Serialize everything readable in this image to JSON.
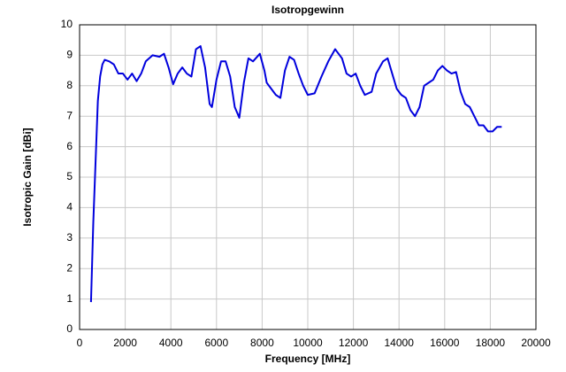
{
  "chart_data": {
    "type": "line",
    "title": "Isotropgewinn",
    "x_label": "Frequency [MHz]",
    "y_label": "Isotropic Gain [dBi]",
    "x": [
      500,
      600,
      700,
      800,
      900,
      1000,
      1100,
      1300,
      1500,
      1700,
      1900,
      2100,
      2300,
      2500,
      2700,
      2900,
      3200,
      3500,
      3700,
      3900,
      4100,
      4300,
      4500,
      4700,
      4900,
      5100,
      5300,
      5500,
      5700,
      5800,
      6000,
      6200,
      6400,
      6600,
      6800,
      7000,
      7200,
      7400,
      7600,
      7900,
      8100,
      8200,
      8400,
      8600,
      8800,
      9000,
      9200,
      9400,
      9600,
      9800,
      10000,
      10300,
      10600,
      10900,
      11200,
      11500,
      11700,
      11900,
      12100,
      12300,
      12500,
      12800,
      13000,
      13300,
      13500,
      13700,
      13900,
      14100,
      14300,
      14500,
      14700,
      14900,
      15100,
      15300,
      15500,
      15700,
      15900,
      16100,
      16300,
      16500,
      16700,
      16900,
      17100,
      17300,
      17500,
      17700,
      17900,
      18100,
      18300,
      18500
    ],
    "series": [
      {
        "name": "Isotropic Gain",
        "color": "#0000dd",
        "values": [
          0.9,
          3.5,
          5.5,
          7.5,
          8.3,
          8.7,
          8.85,
          8.8,
          8.7,
          8.4,
          8.4,
          8.2,
          8.4,
          8.15,
          8.4,
          8.8,
          9.0,
          8.95,
          9.05,
          8.6,
          8.05,
          8.4,
          8.6,
          8.4,
          8.3,
          9.2,
          9.3,
          8.6,
          7.4,
          7.3,
          8.2,
          8.8,
          8.8,
          8.3,
          7.3,
          6.95,
          8.1,
          8.9,
          8.8,
          9.05,
          8.5,
          8.1,
          7.9,
          7.7,
          7.6,
          8.5,
          8.95,
          8.85,
          8.4,
          8.0,
          7.7,
          7.75,
          8.3,
          8.8,
          9.2,
          8.9,
          8.4,
          8.3,
          8.4,
          8.0,
          7.7,
          7.8,
          8.4,
          8.8,
          8.9,
          8.4,
          7.9,
          7.7,
          7.6,
          7.2,
          7.0,
          7.3,
          8.0,
          8.1,
          8.2,
          8.5,
          8.65,
          8.5,
          8.4,
          8.45,
          7.8,
          7.4,
          7.3,
          7.0,
          6.7,
          6.7,
          6.5,
          6.5,
          6.65,
          6.65
        ]
      }
    ],
    "xlim": [
      0,
      20000
    ],
    "xticks": [
      0,
      2000,
      4000,
      6000,
      8000,
      10000,
      12000,
      14000,
      16000,
      18000,
      20000
    ],
    "ylim": [
      0,
      10
    ],
    "yticks": [
      0,
      1,
      2,
      3,
      4,
      5,
      6,
      7,
      8,
      9,
      10
    ],
    "grid": true
  }
}
